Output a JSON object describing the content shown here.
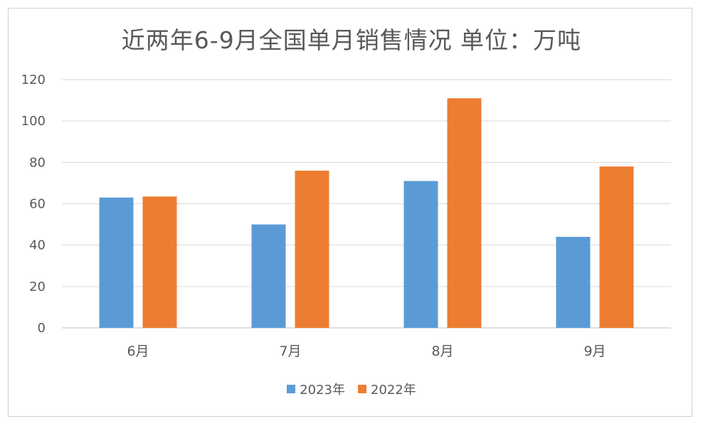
{
  "chart_data": {
    "type": "bar",
    "title": "近两年6-9月全国单月销售情况  单位：万吨",
    "categories": [
      "6月",
      "7月",
      "8月",
      "9月"
    ],
    "series": [
      {
        "name": "2023年",
        "color": "#5b9bd5",
        "values": [
          63,
          50,
          71,
          44
        ]
      },
      {
        "name": "2022年",
        "color": "#ed7d31",
        "values": [
          63.5,
          76,
          111,
          78
        ]
      }
    ],
    "yticks": [
      "0",
      "20",
      "40",
      "60",
      "80",
      "100",
      "120"
    ],
    "ylim": [
      0,
      120
    ],
    "grid": true,
    "legend_position": "bottom"
  }
}
